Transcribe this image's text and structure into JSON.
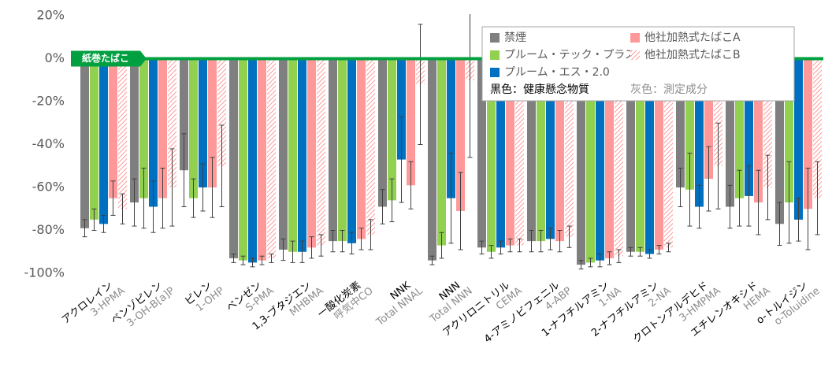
{
  "chart_data": {
    "type": "bar",
    "reference_label": "紙巻たばこ",
    "categories": [
      "アクロレイン",
      "ベンゾピレン",
      "ピレン",
      "ベンゼン",
      "1,3-ブタジエン",
      "一酸化炭素",
      "NNK",
      "NNN",
      "アクリロニトリル",
      "4-アミノビフェニル",
      "1-ナフチルアミン",
      "2-ナフチルアミン",
      "クロトンアルデヒド",
      "エチレンオキシド",
      "o-トルイジン"
    ],
    "subcategories": [
      "3-HPMA",
      "3-OH-B[a]P",
      "1-OHP",
      "S-PMA",
      "MHBMA",
      "呼気中CO",
      "Total NNAL",
      "Total NNN",
      "CEMA",
      "4-ABP",
      "1-NA",
      "2-NA",
      "3-HMPMA",
      "HEMA",
      "o-Toluidine"
    ],
    "series": [
      {
        "name": "禁煙",
        "color": "#7f7f7f",
        "values": [
          -79,
          -67,
          -52,
          -93,
          -89,
          -85,
          -69,
          -94,
          -88,
          -85,
          -96,
          -90,
          -60,
          -69,
          -77
        ],
        "errors": [
          4,
          11,
          17,
          2,
          5,
          5,
          8,
          2,
          3,
          5,
          2,
          2,
          9,
          10,
          10
        ]
      },
      {
        "name": "プルーム・テック・プラス",
        "color": "#92d050",
        "values": [
          -75,
          -65,
          -65,
          -94,
          -90,
          -85,
          -66,
          -87,
          -90,
          -85,
          -95,
          -90,
          -61,
          -65,
          -67
        ],
        "errors": [
          5,
          14,
          9,
          2,
          5,
          5,
          10,
          6,
          3,
          5,
          2,
          2,
          17,
          13,
          19
        ]
      },
      {
        "name": "プルーム・エス・2.0",
        "color": "#0070c0",
        "values": [
          -77,
          -69,
          -60,
          -95,
          -90,
          -86,
          -47,
          -65,
          -88,
          -84,
          -94,
          -91,
          -69,
          -64,
          -75
        ],
        "errors": [
          4,
          12,
          11,
          2,
          5,
          5,
          20,
          21,
          3,
          5,
          3,
          2,
          10,
          14,
          10
        ]
      },
      {
        "name": "他社加熱式たばこA",
        "color": "#ff9999",
        "values": [
          -65,
          -65,
          -60,
          -94,
          -88,
          -84,
          -59,
          -71,
          -87,
          -85,
          -93,
          -89,
          -56,
          -67,
          -70
        ],
        "errors": [
          8,
          14,
          14,
          2,
          5,
          5,
          11,
          18,
          3,
          5,
          3,
          2,
          15,
          15,
          19
        ]
      },
      {
        "name": "他社加熱式たばこB",
        "color": "#ff9999",
        "hatched": true,
        "values": [
          -70,
          -60,
          -50,
          -93,
          -87,
          -82,
          -12,
          -10,
          -87,
          -83,
          -92,
          -88,
          -50,
          -60,
          -65
        ],
        "errors": [
          7,
          18,
          19,
          2,
          5,
          7,
          28,
          36,
          3,
          5,
          3,
          2,
          20,
          15,
          17
        ]
      }
    ],
    "legend_note": [
      "黒色：健康懸念物質",
      "灰色：測定成分"
    ],
    "ylim": [
      -100,
      20
    ],
    "yticks": [
      {
        "value": -100,
        "label": "-100%"
      },
      {
        "value": -80,
        "label": "-80%"
      },
      {
        "value": -60,
        "label": "-60%"
      },
      {
        "value": -40,
        "label": "-40%"
      },
      {
        "value": -20,
        "label": "-20%"
      },
      {
        "value": 0,
        "label": "0%"
      },
      {
        "value": 20,
        "label": "20%"
      }
    ],
    "reference_color": "#00a040"
  }
}
